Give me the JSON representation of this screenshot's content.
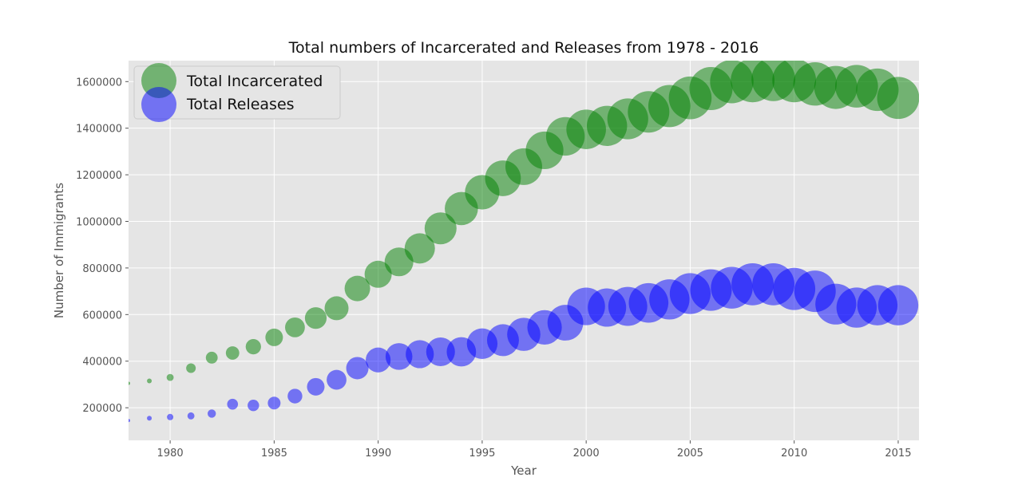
{
  "chart_data": {
    "type": "scatter",
    "title": "Total numbers of Incarcerated and Releases from 1978 - 2016",
    "xlabel": "Year",
    "ylabel": "Number of Immigrants",
    "xlim": [
      1978,
      2016
    ],
    "ylim": [
      60000,
      1690000
    ],
    "xticks": [
      1980,
      1985,
      1990,
      1995,
      2000,
      2005,
      2010,
      2015
    ],
    "yticks": [
      200000,
      400000,
      600000,
      800000,
      1000000,
      1200000,
      1400000,
      1600000
    ],
    "grid": true,
    "legend_position": "top-left",
    "x": [
      1978,
      1979,
      1980,
      1981,
      1982,
      1983,
      1984,
      1985,
      1986,
      1987,
      1988,
      1989,
      1990,
      1991,
      1992,
      1993,
      1994,
      1995,
      1996,
      1997,
      1998,
      1999,
      2000,
      2001,
      2002,
      2003,
      2004,
      2005,
      2006,
      2007,
      2008,
      2009,
      2010,
      2011,
      2012,
      2013,
      2014,
      2015
    ],
    "series": [
      {
        "name": "Total Incarcerated",
        "color": "#008000",
        "values": [
          305000,
          315000,
          330000,
          370000,
          415000,
          435000,
          462000,
          502000,
          545000,
          585000,
          627000,
          712000,
          773000,
          826000,
          884000,
          970000,
          1055000,
          1125000,
          1185000,
          1235000,
          1305000,
          1365000,
          1395000,
          1410000,
          1440000,
          1470000,
          1495000,
          1530000,
          1570000,
          1600000,
          1605000,
          1610000,
          1605000,
          1590000,
          1575000,
          1580000,
          1565000,
          1530000
        ],
        "marker_sizes": [
          10,
          15,
          22,
          30,
          37,
          42,
          48,
          55,
          62,
          68,
          75,
          80,
          85,
          90,
          95,
          100,
          104,
          108,
          112,
          115,
          118,
          121,
          124,
          126,
          128,
          130,
          132,
          134,
          135,
          136,
          137,
          137,
          137,
          136,
          135,
          134,
          133,
          132
        ]
      },
      {
        "name": "Total Releases",
        "color": "#0000ff",
        "values": [
          145000,
          155000,
          160000,
          165000,
          175000,
          215000,
          210000,
          220000,
          250000,
          290000,
          320000,
          370000,
          405000,
          420000,
          430000,
          440000,
          440000,
          475000,
          490000,
          515000,
          545000,
          565000,
          635000,
          630000,
          635000,
          650000,
          665000,
          690000,
          705000,
          715000,
          730000,
          730000,
          710000,
          700000,
          645000,
          630000,
          640000,
          640000
        ],
        "marker_sizes": [
          10,
          15,
          20,
          22,
          26,
          34,
          36,
          40,
          46,
          55,
          62,
          70,
          78,
          84,
          88,
          90,
          92,
          96,
          100,
          104,
          108,
          112,
          118,
          120,
          122,
          124,
          126,
          128,
          130,
          131,
          132,
          132,
          132,
          130,
          128,
          126,
          126,
          126
        ]
      }
    ]
  }
}
